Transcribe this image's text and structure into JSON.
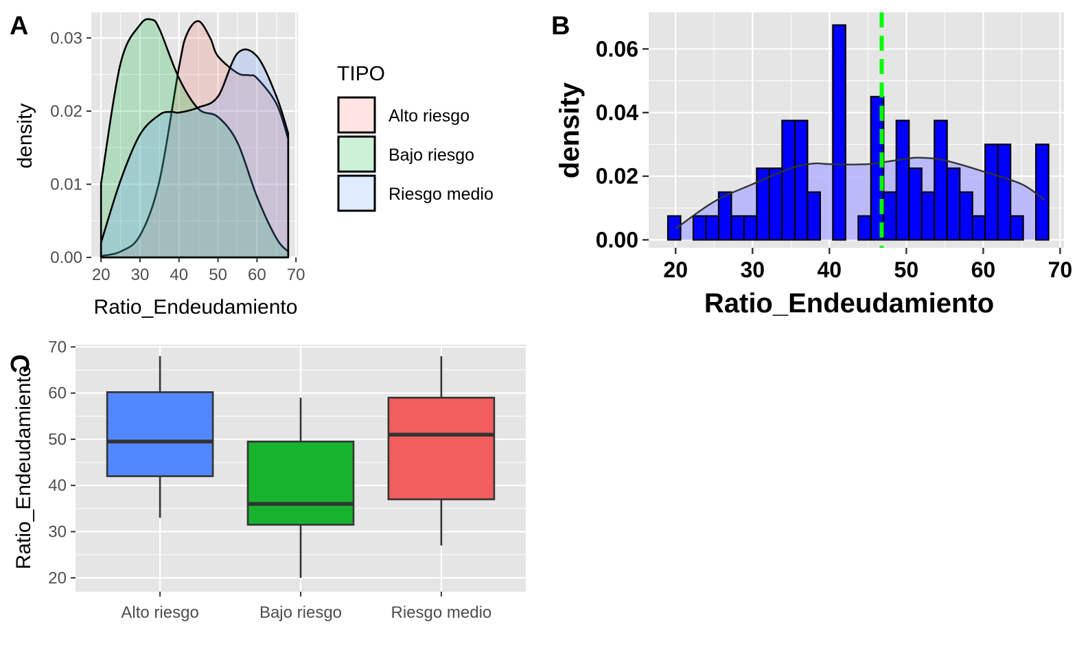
{
  "panels": {
    "a": "A",
    "b": "B",
    "c": "C"
  },
  "colors": {
    "panel_bg": "#e5e5e5",
    "grid": "#ffffff",
    "alto": "#f8766d",
    "bajo": "#00ba38",
    "medio": "#619cff",
    "hist_fill": "#0000ff",
    "hist_density_fill": "#b3b3ff",
    "mean_line": "#00ff00",
    "box_alto": "#5288ff",
    "box_bajo": "#17b32e",
    "box_medio": "#f25e5e"
  },
  "chart_data": [
    {
      "id": "A",
      "type": "area",
      "xlabel": "Ratio_Endeudamiento",
      "ylabel": "density",
      "xlim": [
        17.5,
        70.5
      ],
      "ylim": [
        0,
        0.0335
      ],
      "x_ticks": [
        20,
        30,
        40,
        50,
        60,
        70
      ],
      "x_tick_labels": [
        "20",
        "30",
        "40",
        "50",
        "60",
        "70"
      ],
      "y_ticks": [
        0,
        0.01,
        0.02,
        0.03
      ],
      "y_tick_labels": [
        "0.00",
        "0.01",
        "0.02",
        "0.03"
      ],
      "legend": {
        "title": "TIPO",
        "position": "right"
      },
      "grid": true,
      "series": [
        {
          "name": "Alto riesgo",
          "color": "#f8766d",
          "x": [
            20,
            25,
            30,
            35,
            40,
            42,
            45,
            48,
            50,
            55,
            58,
            60,
            65,
            68
          ],
          "y": [
            0.0002,
            0.0008,
            0.003,
            0.0105,
            0.026,
            0.0305,
            0.0323,
            0.03,
            0.0275,
            0.0252,
            0.0249,
            0.0245,
            0.021,
            0.0162
          ]
        },
        {
          "name": "Bajo riesgo",
          "color": "#00ba38",
          "x": [
            20,
            25,
            30,
            33,
            35,
            40,
            45,
            50,
            55,
            60,
            65,
            68
          ],
          "y": [
            0.0101,
            0.0265,
            0.0318,
            0.0325,
            0.0312,
            0.0245,
            0.0203,
            0.0192,
            0.0157,
            0.0083,
            0.0026,
            0.0008
          ]
        },
        {
          "name": "Riesgo medio",
          "color": "#619cff",
          "x": [
            20,
            25,
            30,
            35,
            38,
            40,
            45,
            50,
            55,
            60,
            65,
            68
          ],
          "y": [
            0.002,
            0.0105,
            0.0168,
            0.0195,
            0.0199,
            0.0198,
            0.0205,
            0.022,
            0.0279,
            0.0275,
            0.022,
            0.017
          ]
        }
      ]
    },
    {
      "id": "B",
      "type": "bar",
      "xlabel": "Ratio_Endeudamiento",
      "ylabel": "density",
      "xlim": [
        16.5,
        70.5
      ],
      "ylim": [
        -0.0025,
        0.0715
      ],
      "x_ticks": [
        20,
        30,
        40,
        50,
        60,
        70
      ],
      "x_tick_labels": [
        "20",
        "30",
        "40",
        "50",
        "60",
        "70"
      ],
      "y_ticks": [
        0,
        0.02,
        0.04,
        0.06
      ],
      "y_tick_labels": [
        "0.00",
        "0.02",
        "0.04",
        "0.06"
      ],
      "grid": true,
      "bins": {
        "start": 19,
        "width": 1.65,
        "values": [
          0.0075,
          0,
          0.0075,
          0.0075,
          0.015,
          0.0075,
          0.0075,
          0.0225,
          0.0225,
          0.0375,
          0.0375,
          0.015,
          0,
          0.0675,
          0,
          0.0075,
          0.045,
          0.015,
          0.0375,
          0.0225,
          0.015,
          0.0375,
          0.0225,
          0.015,
          0.0075,
          0.03,
          0.03,
          0.0075,
          0,
          0.03
        ]
      },
      "density_curve": {
        "x": [
          20,
          25,
          30,
          35,
          38,
          40,
          45,
          50,
          52,
          55,
          60,
          65,
          68
        ],
        "y": [
          0.0035,
          0.012,
          0.0175,
          0.0225,
          0.024,
          0.0238,
          0.0238,
          0.0255,
          0.0258,
          0.025,
          0.0215,
          0.0175,
          0.0125
        ]
      },
      "mean_line_x": 46.8
    },
    {
      "id": "C",
      "type": "boxplot",
      "xlabel": "",
      "ylabel": "Ratio_Endeudamiento",
      "ylim": [
        17,
        70.5
      ],
      "y_ticks": [
        20,
        30,
        40,
        50,
        60,
        70
      ],
      "y_tick_labels": [
        "20",
        "30",
        "40",
        "50",
        "60",
        "70"
      ],
      "grid": true,
      "categories": [
        "Alto riesgo",
        "Bajo riesgo",
        "Riesgo medio"
      ],
      "boxes": [
        {
          "category": "Alto riesgo",
          "min": 33,
          "q1": 42,
          "median": 49.5,
          "q3": 60.2,
          "max": 68,
          "color": "#5288ff"
        },
        {
          "category": "Bajo riesgo",
          "min": 20,
          "q1": 31.5,
          "median": 36,
          "q3": 49.5,
          "max": 59,
          "color": "#17b32e"
        },
        {
          "category": "Riesgo medio",
          "min": 27,
          "q1": 37,
          "median": 51,
          "q3": 59,
          "max": 68,
          "color": "#f25e5e"
        }
      ]
    }
  ]
}
